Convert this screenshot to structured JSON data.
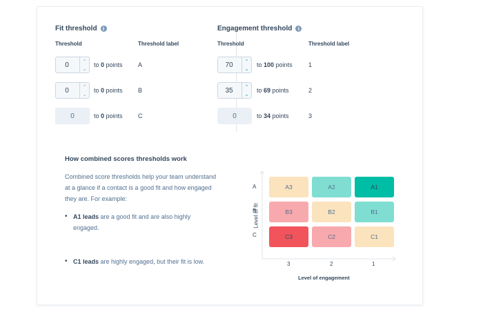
{
  "fit": {
    "title": "Fit threshold",
    "col_threshold": "Threshold",
    "col_label": "Threshold label",
    "rows": [
      {
        "value": "0",
        "to_prefix": "to ",
        "to_value": "0",
        "to_suffix": " points",
        "label": "A"
      },
      {
        "value": "0",
        "to_prefix": "to ",
        "to_value": "0",
        "to_suffix": " points",
        "label": "B"
      },
      {
        "value": "0",
        "to_prefix": "to ",
        "to_value": "0",
        "to_suffix": " points",
        "label": "C"
      }
    ]
  },
  "engagement": {
    "title": "Engagement threshold",
    "col_threshold": "Threshold",
    "col_label": "Threshold label",
    "rows": [
      {
        "value": "70",
        "to_prefix": "to ",
        "to_value": "100",
        "to_suffix": " points",
        "label": "1"
      },
      {
        "value": "35",
        "to_prefix": "to ",
        "to_value": "69",
        "to_suffix": " points",
        "label": "2"
      },
      {
        "value": "0",
        "to_prefix": "to ",
        "to_value": "34",
        "to_suffix": " points",
        "label": "3"
      }
    ]
  },
  "how": {
    "title": "How combined scores thresholds work",
    "description": "Combined score thresholds help your team understand at a glance if a contact is a good fit and how engaged they are. For example:",
    "bullets": [
      {
        "bold": "A1 leads",
        "text": " are a good fit and are also highly engaged."
      },
      {
        "bold": "C1 leads",
        "text": " are highly engaged, but their fit is low."
      }
    ]
  },
  "matrix": {
    "y_axis_label": "Level of fit",
    "x_axis_label": "Level of engagement",
    "row_labels": [
      "A",
      "B",
      "C"
    ],
    "col_labels": [
      "3",
      "2",
      "1"
    ],
    "cells": [
      [
        {
          "text": "A3",
          "color": "#fbe3bd"
        },
        {
          "text": "A2",
          "color": "#7fded1"
        },
        {
          "text": "A1",
          "color": "#00bda5"
        }
      ],
      [
        {
          "text": "B3",
          "color": "#f8a9ad"
        },
        {
          "text": "B2",
          "color": "#fbe3bd"
        },
        {
          "text": "B1",
          "color": "#7fded1"
        }
      ],
      [
        {
          "text": "C3",
          "color": "#f2545b"
        },
        {
          "text": "C2",
          "color": "#f8a9ad"
        },
        {
          "text": "C1",
          "color": "#fbe3bd"
        }
      ]
    ]
  },
  "icons": {
    "info": "info-icon",
    "up": "chevron-up-icon",
    "down": "chevron-down-icon"
  }
}
